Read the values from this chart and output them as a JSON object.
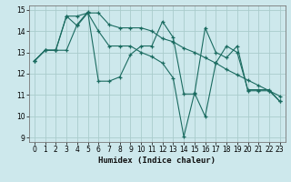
{
  "xlabel": "Humidex (Indice chaleur)",
  "xlim": [
    -0.5,
    23.5
  ],
  "ylim": [
    8.8,
    15.2
  ],
  "yticks": [
    9,
    10,
    11,
    12,
    13,
    14,
    15
  ],
  "xticks": [
    0,
    1,
    2,
    3,
    4,
    5,
    6,
    7,
    8,
    9,
    10,
    11,
    12,
    13,
    14,
    15,
    16,
    17,
    18,
    19,
    20,
    21,
    22,
    23
  ],
  "bg_color": "#cde8ec",
  "grid_color": "#aacccc",
  "line_color": "#1a6b60",
  "series": [
    [
      12.6,
      13.1,
      13.1,
      13.1,
      14.3,
      14.9,
      11.65,
      11.65,
      11.85,
      12.9,
      13.3,
      13.3,
      14.45,
      13.7,
      11.05,
      11.05,
      14.15,
      13.0,
      12.75,
      13.3,
      11.2,
      11.2,
      11.2,
      10.7
    ],
    [
      12.6,
      13.1,
      13.1,
      14.7,
      14.25,
      14.85,
      14.0,
      13.3,
      13.3,
      13.3,
      13.0,
      12.8,
      12.5,
      11.8,
      9.05,
      11.1,
      10.0,
      12.5,
      13.3,
      13.0,
      11.25,
      11.25,
      11.25,
      10.7
    ],
    [
      12.6,
      13.1,
      13.1,
      14.7,
      14.7,
      14.85,
      14.85,
      14.3,
      14.15,
      14.15,
      14.15,
      14.0,
      13.65,
      13.5,
      13.2,
      13.0,
      12.75,
      12.5,
      12.2,
      11.95,
      11.7,
      11.45,
      11.2,
      10.95
    ]
  ]
}
